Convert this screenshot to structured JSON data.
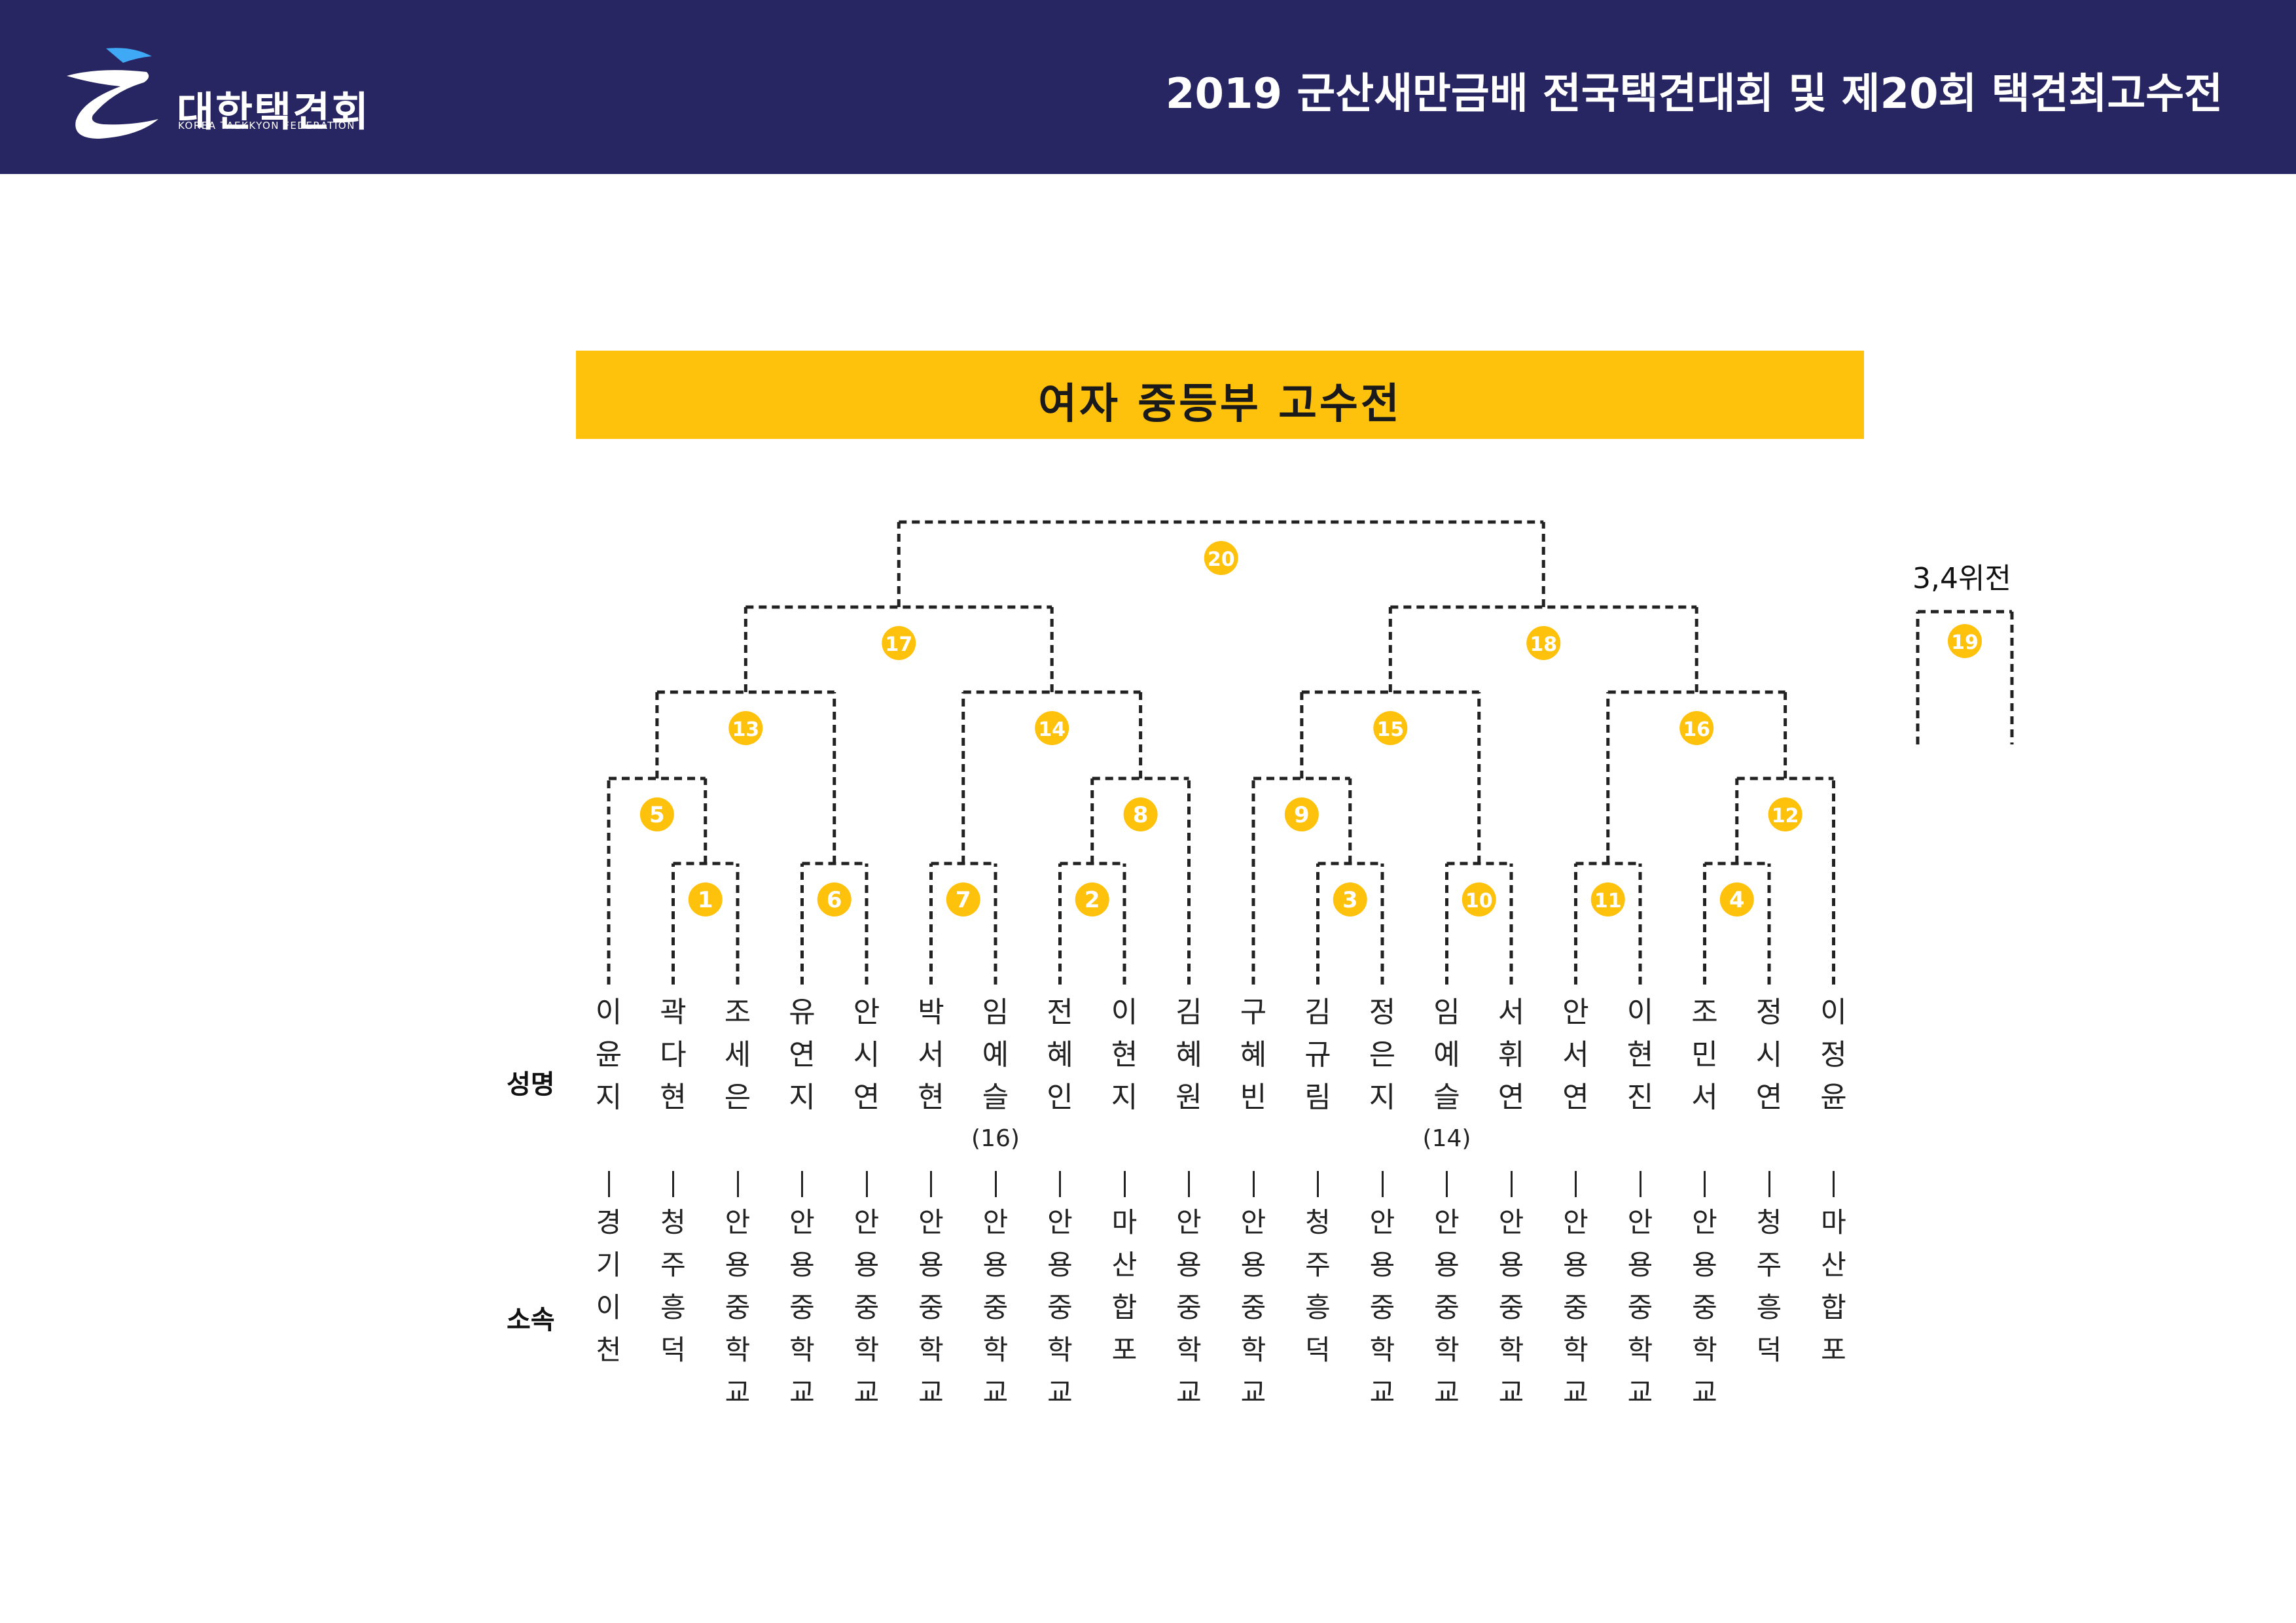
{
  "header": {
    "org_name": "대한택견회",
    "org_subtitle": "KOREA TAEKKYON FEDERATION",
    "event_title": "2019 군산새만금배 전국택견대회 및 제20회 택견최고수전"
  },
  "colors": {
    "header_bg": "#282563",
    "banner": "#fec10c",
    "match_circle": "#fec10c",
    "logo_accent": "#3fa9f5"
  },
  "icons": [
    "federation-logo-icon"
  ],
  "banner": {
    "title": "여자 중등부 고수전"
  },
  "labels": {
    "name_row": "성명",
    "affiliation_row": "소속",
    "third_place": "3,4위전"
  },
  "players": [
    {
      "name": "이윤지",
      "affiliation": "경기이천"
    },
    {
      "name": "곽다현",
      "affiliation": "청주흥덕"
    },
    {
      "name": "조세은",
      "affiliation": "안용중학교"
    },
    {
      "name": "유연지",
      "affiliation": "안용중학교"
    },
    {
      "name": "안시연",
      "affiliation": "안용중학교"
    },
    {
      "name": "박서현",
      "affiliation": "안용중학교"
    },
    {
      "name": "임예슬",
      "affiliation": "안용중학교",
      "seed": "(16)"
    },
    {
      "name": "전혜인",
      "affiliation": "안용중학교"
    },
    {
      "name": "이현지",
      "affiliation": "마산합포"
    },
    {
      "name": "김혜원",
      "affiliation": "안용중학교"
    },
    {
      "name": "구혜빈",
      "affiliation": "안용중학교"
    },
    {
      "name": "김규림",
      "affiliation": "청주흥덕"
    },
    {
      "name": "정은지",
      "affiliation": "안용중학교"
    },
    {
      "name": "임예슬",
      "affiliation": "안용중학교",
      "seed": "(14)"
    },
    {
      "name": "서휘연",
      "affiliation": "안용중학교"
    },
    {
      "name": "안서연",
      "affiliation": "안용중학교"
    },
    {
      "name": "이현진",
      "affiliation": "안용중학교"
    },
    {
      "name": "조민서",
      "affiliation": "안용중학교"
    },
    {
      "name": "정시연",
      "affiliation": "청주흥덕"
    },
    {
      "name": "이정윤",
      "affiliation": "마산합포"
    }
  ],
  "matches": [
    {
      "number": "1",
      "sides": [
        1,
        2
      ]
    },
    {
      "number": "2",
      "sides": [
        7,
        8
      ]
    },
    {
      "number": "3",
      "sides": [
        11,
        12
      ]
    },
    {
      "number": "4",
      "sides": [
        17,
        18
      ]
    },
    {
      "number": "5",
      "sides": [
        0,
        "m1"
      ]
    },
    {
      "number": "6",
      "sides": [
        3,
        4
      ]
    },
    {
      "number": "7",
      "sides": [
        5,
        6
      ]
    },
    {
      "number": "8",
      "sides": [
        "m2",
        9
      ]
    },
    {
      "number": "9",
      "sides": [
        10,
        "m3"
      ]
    },
    {
      "number": "10",
      "sides": [
        13,
        14
      ]
    },
    {
      "number": "11",
      "sides": [
        15,
        16
      ]
    },
    {
      "number": "12",
      "sides": [
        "m4",
        19
      ]
    },
    {
      "number": "13",
      "sides": [
        "m5",
        "m6"
      ]
    },
    {
      "number": "14",
      "sides": [
        "m7",
        "m8"
      ]
    },
    {
      "number": "15",
      "sides": [
        "m9",
        "m10"
      ]
    },
    {
      "number": "16",
      "sides": [
        "m11",
        "m12"
      ]
    },
    {
      "number": "17",
      "sides": [
        "m13",
        "m14"
      ]
    },
    {
      "number": "18",
      "sides": [
        "m15",
        "m16"
      ]
    },
    {
      "number": "20",
      "sides": [
        "m17",
        "m18"
      ]
    }
  ],
  "third_place_match": {
    "number": "19"
  }
}
